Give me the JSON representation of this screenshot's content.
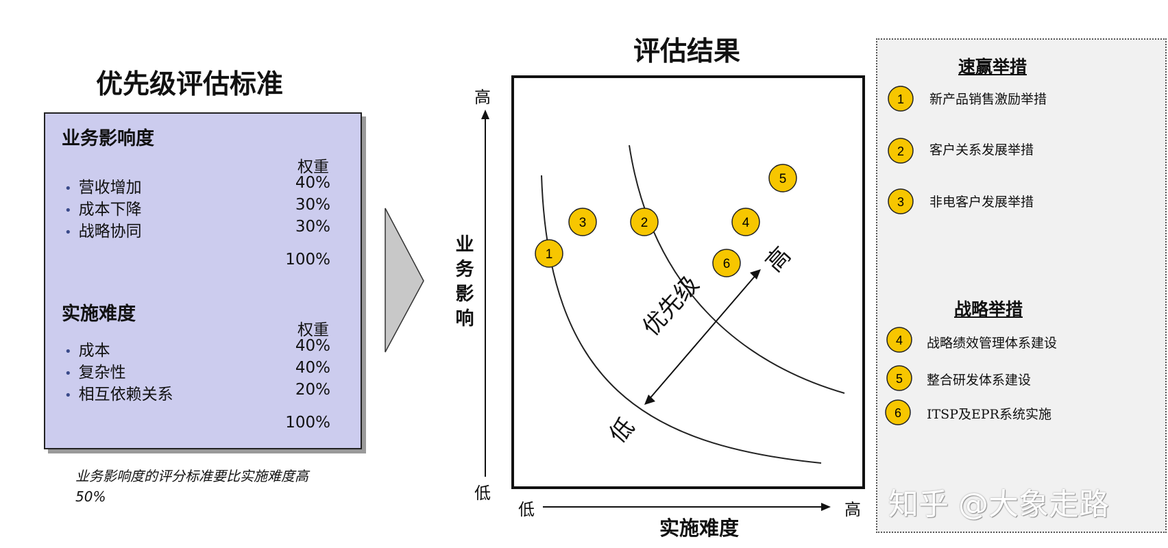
{
  "left": {
    "title": "优先级评估标准",
    "impact": {
      "title": "业务影响度",
      "weight_header": "权重",
      "items": [
        {
          "label": "营收增加",
          "weight": "40%"
        },
        {
          "label": "成本下降",
          "weight": "30%"
        },
        {
          "label": "战略协同",
          "weight": "30%"
        }
      ],
      "total": "100%"
    },
    "difficulty": {
      "title": "实施难度",
      "weight_header": "权重",
      "items": [
        {
          "label": "成本",
          "weight": "40%"
        },
        {
          "label": "复杂性",
          "weight": "40%"
        },
        {
          "label": "相互依赖关系",
          "weight": "20%"
        }
      ],
      "total": "100%"
    },
    "note": "业务影响度的评分标准要比实施难度高50%"
  },
  "chart": {
    "title": "评估结果",
    "y_axis": {
      "title": "业务影响",
      "high": "高",
      "low": "低"
    },
    "x_axis": {
      "title": "实施难度",
      "low": "低",
      "high": "高"
    },
    "priority_label": "优先级",
    "priority_high": "高",
    "priority_low": "低",
    "markers": [
      {
        "num": "1"
      },
      {
        "num": "3"
      },
      {
        "num": "2"
      },
      {
        "num": "4"
      },
      {
        "num": "5"
      },
      {
        "num": "6"
      }
    ],
    "marker_color": "#f7c600"
  },
  "right": {
    "quick_wins": {
      "title": "速赢举措",
      "items": [
        {
          "num": "1",
          "text": "新产品销售激励举措"
        },
        {
          "num": "2",
          "text": "客户关系发展举措"
        },
        {
          "num": "3",
          "text": "非电客户发展举措"
        }
      ]
    },
    "strategic": {
      "title": "战略举措",
      "items": [
        {
          "num": "4",
          "text": "战略绩效管理体系建设"
        },
        {
          "num": "5",
          "text": "整合研发体系建设"
        },
        {
          "num": "6",
          "text": "ITSP及EPR系统实施"
        }
      ]
    },
    "watermark": "知乎 @大象走路"
  }
}
